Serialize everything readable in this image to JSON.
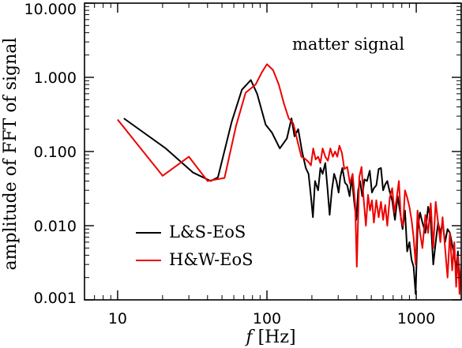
{
  "chart_data": {
    "type": "line",
    "title": "",
    "xlabel_italic": "f",
    "xlabel_rest": " [Hz]",
    "ylabel": "amplitude of FFT of signal",
    "annotation": "matter signal",
    "xscale": "log",
    "yscale": "log",
    "xlim": [
      6,
      2000
    ],
    "ylim": [
      0.001,
      10
    ],
    "grid": false,
    "legend_position": "bottom-left",
    "xticks": [
      {
        "value": 10,
        "label": "10"
      },
      {
        "value": 100,
        "label": "100"
      },
      {
        "value": 1000,
        "label": "1000"
      }
    ],
    "yticks": [
      {
        "value": 0.001,
        "label": "0.001"
      },
      {
        "value": 0.01,
        "label": "0.010"
      },
      {
        "value": 0.1,
        "label": "0.100"
      },
      {
        "value": 1,
        "label": "1.000"
      },
      {
        "value": 10,
        "label": "10.000"
      }
    ],
    "series": [
      {
        "name": "L&S-EoS",
        "color": "#000000",
        "points": [
          [
            11,
            0.28
          ],
          [
            21,
            0.11
          ],
          [
            32,
            0.052
          ],
          [
            42,
            0.04
          ],
          [
            47,
            0.045
          ],
          [
            58,
            0.25
          ],
          [
            68,
            0.68
          ],
          [
            78,
            0.92
          ],
          [
            86,
            0.6
          ],
          [
            98,
            0.23
          ],
          [
            108,
            0.18
          ],
          [
            122,
            0.11
          ],
          [
            136,
            0.15
          ],
          [
            146,
            0.28
          ],
          [
            153,
            0.16
          ],
          [
            162,
            0.2
          ],
          [
            172,
            0.1
          ],
          [
            182,
            0.06
          ],
          [
            190,
            0.05
          ],
          [
            197,
            0.025
          ],
          [
            203,
            0.013
          ],
          [
            210,
            0.04
          ],
          [
            220,
            0.03
          ],
          [
            228,
            0.06
          ],
          [
            236,
            0.05
          ],
          [
            246,
            0.07
          ],
          [
            255,
            0.03
          ],
          [
            263,
            0.014
          ],
          [
            272,
            0.03
          ],
          [
            282,
            0.05
          ],
          [
            292,
            0.04
          ],
          [
            302,
            0.028
          ],
          [
            310,
            0.045
          ],
          [
            320,
            0.06
          ],
          [
            333,
            0.038
          ],
          [
            345,
            0.035
          ],
          [
            358,
            0.025
          ],
          [
            370,
            0.045
          ],
          [
            385,
            0.02
          ],
          [
            397,
            0.012
          ],
          [
            408,
            0.03
          ],
          [
            420,
            0.04
          ],
          [
            435,
            0.025
          ],
          [
            450,
            0.042
          ],
          [
            468,
            0.04
          ],
          [
            488,
            0.055
          ],
          [
            505,
            0.028
          ],
          [
            520,
            0.032
          ],
          [
            540,
            0.035
          ],
          [
            560,
            0.058
          ],
          [
            580,
            0.06
          ],
          [
            600,
            0.03
          ],
          [
            620,
            0.036
          ],
          [
            640,
            0.04
          ],
          [
            660,
            0.03
          ],
          [
            690,
            0.022
          ],
          [
            720,
            0.012
          ],
          [
            750,
            0.025
          ],
          [
            780,
            0.015
          ],
          [
            810,
            0.009
          ],
          [
            840,
            0.016
          ],
          [
            870,
            0.0045
          ],
          [
            900,
            0.006
          ],
          [
            930,
            0.0035
          ],
          [
            960,
            0.0028
          ],
          [
            990,
            0.0012
          ],
          [
            1020,
            0.009
          ],
          [
            1060,
            0.015
          ],
          [
            1100,
            0.011
          ],
          [
            1150,
            0.008
          ],
          [
            1200,
            0.018
          ],
          [
            1250,
            0.012
          ],
          [
            1300,
            0.003
          ],
          [
            1350,
            0.006
          ],
          [
            1400,
            0.011
          ],
          [
            1450,
            0.008
          ],
          [
            1500,
            0.011
          ],
          [
            1560,
            0.006
          ],
          [
            1620,
            0.009
          ],
          [
            1680,
            0.008
          ],
          [
            1740,
            0.0055
          ],
          [
            1800,
            0.004
          ],
          [
            1850,
            0.0025
          ],
          [
            1900,
            0.0045
          ],
          [
            1950,
            0.0018
          ],
          [
            2000,
            0.0015
          ]
        ]
      },
      {
        "name": "H&W-EoS",
        "color": "#ee0000",
        "points": [
          [
            10,
            0.27
          ],
          [
            20,
            0.047
          ],
          [
            30,
            0.085
          ],
          [
            40,
            0.04
          ],
          [
            52,
            0.044
          ],
          [
            62,
            0.22
          ],
          [
            72,
            0.62
          ],
          [
            84,
            0.8
          ],
          [
            92,
            1.15
          ],
          [
            100,
            1.5
          ],
          [
            110,
            1.25
          ],
          [
            120,
            0.8
          ],
          [
            130,
            0.44
          ],
          [
            140,
            0.28
          ],
          [
            150,
            0.24
          ],
          [
            160,
            0.14
          ],
          [
            170,
            0.085
          ],
          [
            180,
            0.08
          ],
          [
            190,
            0.072
          ],
          [
            197,
            0.065
          ],
          [
            204,
            0.11
          ],
          [
            212,
            0.078
          ],
          [
            220,
            0.085
          ],
          [
            228,
            0.07
          ],
          [
            236,
            0.11
          ],
          [
            246,
            0.085
          ],
          [
            256,
            0.075
          ],
          [
            266,
            0.11
          ],
          [
            276,
            0.085
          ],
          [
            286,
            0.1
          ],
          [
            296,
            0.085
          ],
          [
            306,
            0.12
          ],
          [
            318,
            0.095
          ],
          [
            330,
            0.058
          ],
          [
            345,
            0.062
          ],
          [
            360,
            0.037
          ],
          [
            375,
            0.05
          ],
          [
            390,
            0.019
          ],
          [
            400,
            0.0028
          ],
          [
            415,
            0.045
          ],
          [
            430,
            0.062
          ],
          [
            445,
            0.022
          ],
          [
            460,
            0.01
          ],
          [
            475,
            0.026
          ],
          [
            490,
            0.016
          ],
          [
            505,
            0.022
          ],
          [
            520,
            0.011
          ],
          [
            540,
            0.022
          ],
          [
            560,
            0.013
          ],
          [
            580,
            0.021
          ],
          [
            600,
            0.012
          ],
          [
            620,
            0.019
          ],
          [
            640,
            0.01
          ],
          [
            665,
            0.024
          ],
          [
            690,
            0.032
          ],
          [
            715,
            0.015
          ],
          [
            740,
            0.024
          ],
          [
            765,
            0.04
          ],
          [
            790,
            0.012
          ],
          [
            815,
            0.01
          ],
          [
            840,
            0.03
          ],
          [
            870,
            0.024
          ],
          [
            900,
            0.018
          ],
          [
            930,
            0.012
          ],
          [
            960,
            0.007
          ],
          [
            990,
            0.003
          ],
          [
            1020,
            0.016
          ],
          [
            1060,
            0.008
          ],
          [
            1100,
            0.005
          ],
          [
            1150,
            0.014
          ],
          [
            1200,
            0.008
          ],
          [
            1250,
            0.02
          ],
          [
            1300,
            0.005
          ],
          [
            1350,
            0.021
          ],
          [
            1400,
            0.011
          ],
          [
            1450,
            0.006
          ],
          [
            1500,
            0.013
          ],
          [
            1560,
            0.005
          ],
          [
            1620,
            0.002
          ],
          [
            1680,
            0.008
          ],
          [
            1740,
            0.0025
          ],
          [
            1800,
            0.006
          ],
          [
            1850,
            0.0015
          ],
          [
            1900,
            0.004
          ],
          [
            1950,
            0.0012
          ],
          [
            2000,
            0.003
          ]
        ]
      }
    ]
  }
}
